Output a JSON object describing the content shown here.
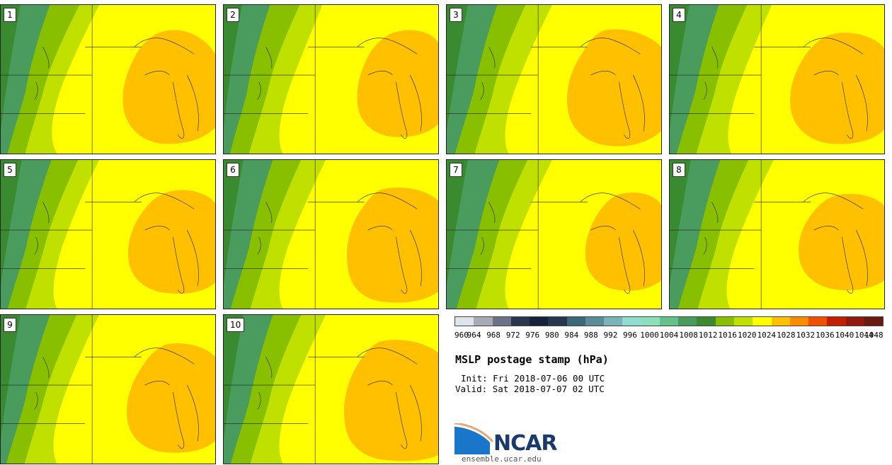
{
  "title": "MSLP postage stamp (hPa)",
  "init_label": "Init:",
  "init_value": "Fri 2018-07-06 00 UTC",
  "valid_label": "Valid:",
  "valid_value": "Sat 2018-07-07 02 UTC",
  "source": "ensemble.ucar.edu",
  "logo_text": "NCAR",
  "panels": [
    "1",
    "2",
    "3",
    "4",
    "5",
    "6",
    "7",
    "8",
    "9",
    "10"
  ],
  "colorbar": {
    "ticks": [
      "960",
      "964",
      "968",
      "972",
      "976",
      "980",
      "984",
      "988",
      "992",
      "996",
      "1000",
      "1004",
      "1008",
      "1012",
      "1016",
      "1020",
      "1024",
      "1028",
      "1032",
      "1036",
      "1040",
      "1044",
      "1048"
    ],
    "colors": [
      "#dfe4e9",
      "#a8aab5",
      "#6c7285",
      "#2a364b",
      "#14223a",
      "#23384f",
      "#3c6878",
      "#5a8c98",
      "#7ab3b8",
      "#8fdcd0",
      "#8cdfb8",
      "#66c089",
      "#4a9c5e",
      "#3a8a2f",
      "#88c000",
      "#c0e000",
      "#ffff00",
      "#ffc000",
      "#ff8c00",
      "#f05000",
      "#c02000",
      "#901a10",
      "#6a1a10"
    ]
  }
}
